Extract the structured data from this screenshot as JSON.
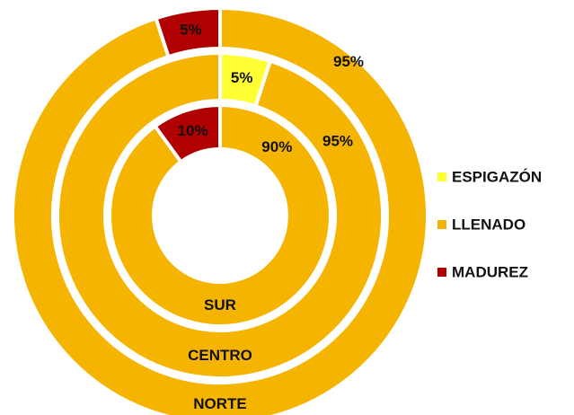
{
  "chart_data": {
    "type": "nested-donut",
    "categories": [
      "ESPIGAZÓN",
      "LLENADO",
      "MADUREZ"
    ],
    "colors": [
      "#ffff33",
      "#f5b400",
      "#b00000"
    ],
    "rings": [
      {
        "name": "NORTE",
        "values": [
          null,
          95,
          5
        ],
        "value_labels": [
          null,
          "95%",
          "5%"
        ]
      },
      {
        "name": "CENTRO",
        "values": [
          5,
          95,
          null
        ],
        "value_labels": [
          "5%",
          "95%",
          null
        ]
      },
      {
        "name": "SUR",
        "values": [
          null,
          90,
          10
        ],
        "value_labels": [
          null,
          "90%",
          "10%"
        ]
      }
    ]
  }
}
